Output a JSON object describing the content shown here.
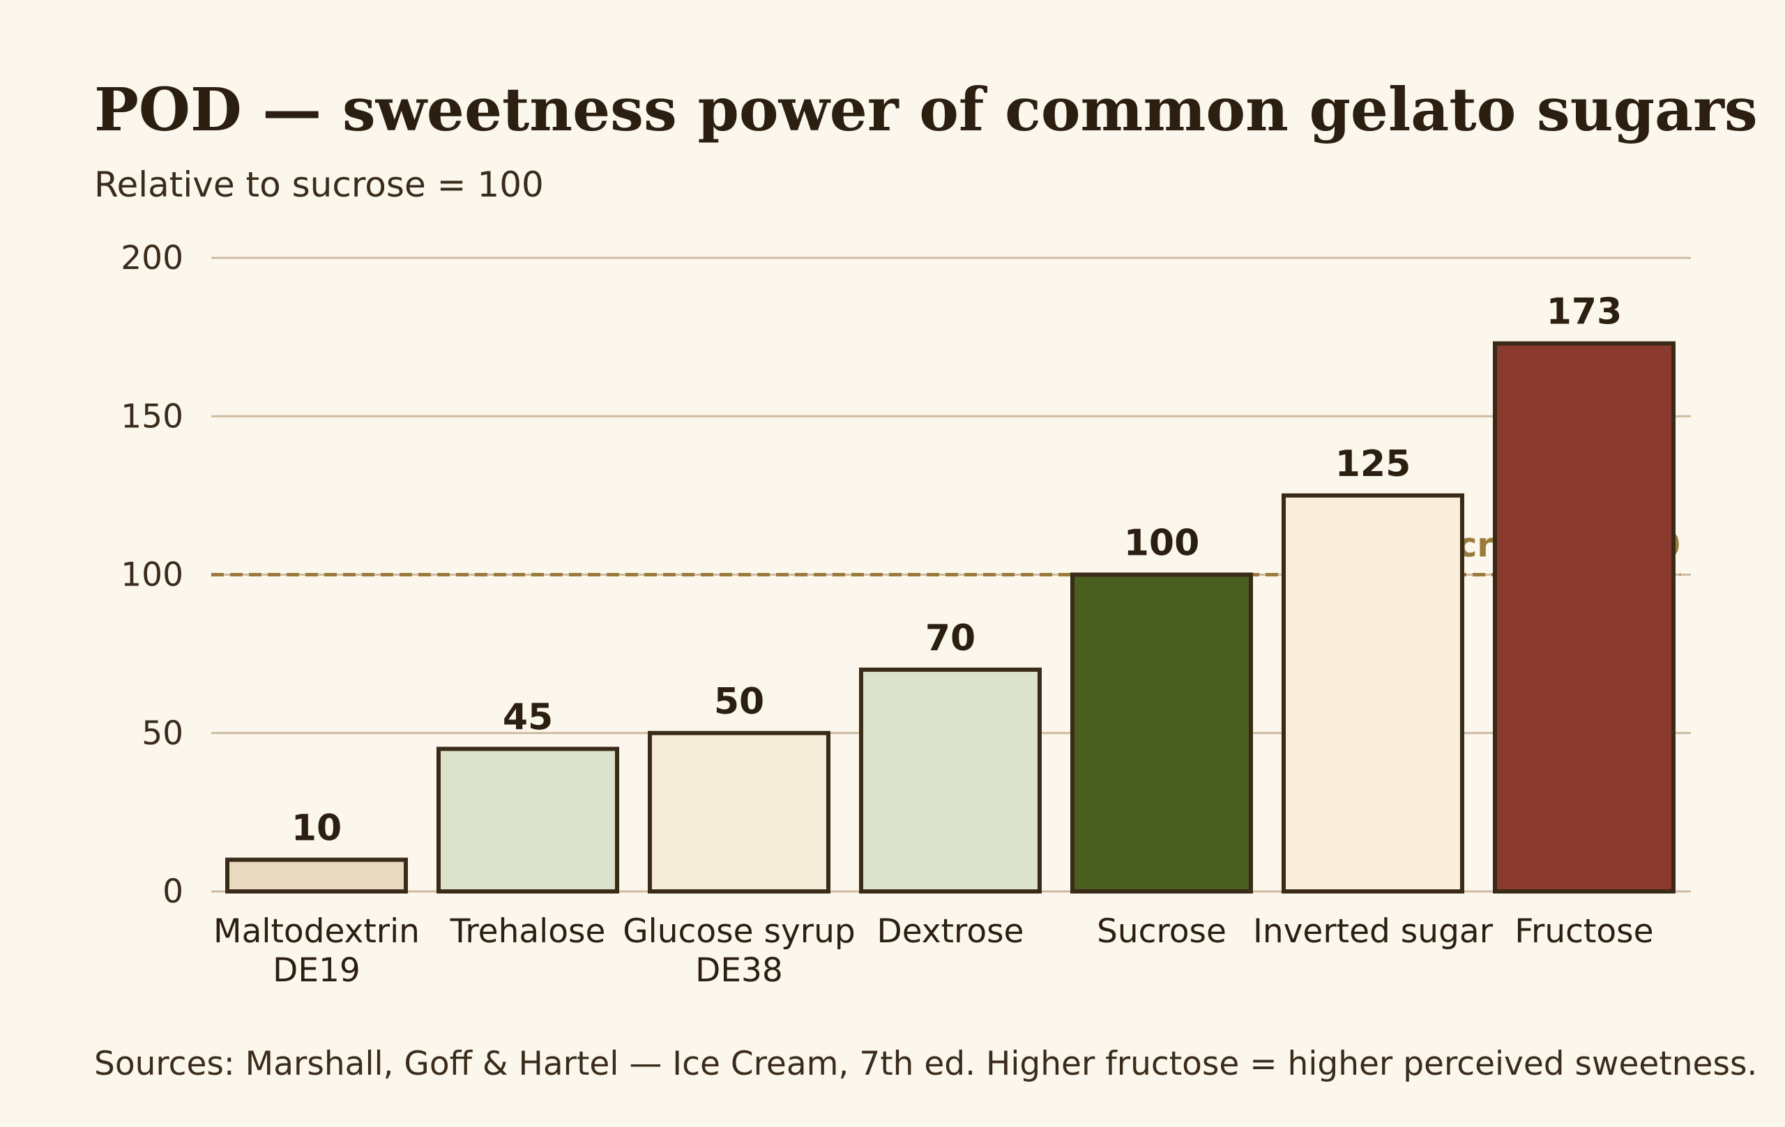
{
  "chart_data": {
    "type": "bar",
    "title": "POD — sweetness power of common gelato sugars",
    "subtitle": "Relative to sucrose = 100",
    "categories": [
      [
        "Maltodextrin",
        "DE19"
      ],
      [
        "Trehalose"
      ],
      [
        "Glucose syrup",
        "DE38"
      ],
      [
        "Dextrose"
      ],
      [
        "Sucrose"
      ],
      [
        "Inverted sugar"
      ],
      [
        "Fructose"
      ]
    ],
    "values": [
      10,
      45,
      50,
      70,
      100,
      125,
      173
    ],
    "value_labels": [
      "10",
      "45",
      "50",
      "70",
      "100",
      "125",
      "173"
    ],
    "bar_colors": [
      "#e8d9c0",
      "#dce2cc",
      "#f4ecd8",
      "#dce2cc",
      "#4a5e20",
      "#f9eed9",
      "#8b3a2e"
    ],
    "bar_outline": "#3a2a18",
    "grid_color": "#cdbba1",
    "ylim": [
      0,
      200
    ],
    "yticks": [
      0,
      50,
      100,
      150,
      200
    ],
    "ytick_labels": [
      "0",
      "50",
      "100",
      "150",
      "200"
    ],
    "grid": true,
    "reference_line": {
      "value": 100,
      "label": "Sucrose = 100",
      "color": "#9b7b3d",
      "style": "dashed"
    },
    "source": "Sources: Marshall, Goff & Hartel — Ice Cream, 7th ed. Higher fructose = higher perceived sweetness."
  },
  "colors": {
    "background": "#fcf7ec",
    "text": "#2b1f12"
  }
}
